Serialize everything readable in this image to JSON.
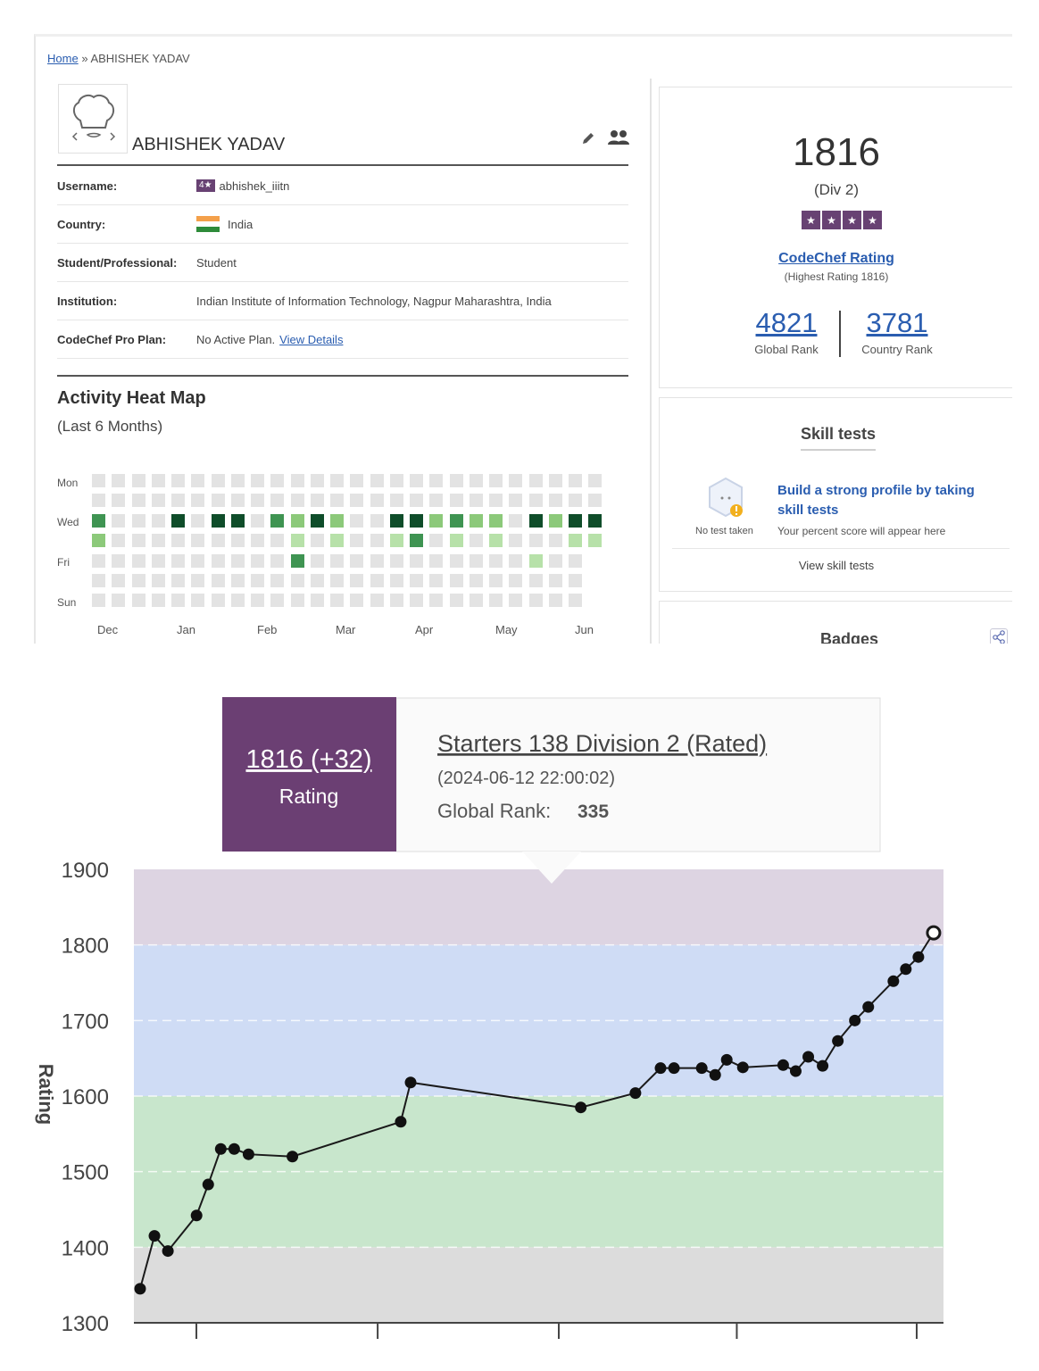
{
  "breadcrumb": {
    "home": "Home",
    "separator": "»",
    "current": "ABHISHEK YADAV"
  },
  "profile": {
    "name": "ABHISHEK YADAV",
    "details": [
      {
        "key": "Username:",
        "star": "4★",
        "value": "abhishek_iiitn"
      },
      {
        "key": "Country:",
        "flag": true,
        "value": "India"
      },
      {
        "key": "Student/Professional:",
        "value": "Student"
      },
      {
        "key": "Institution:",
        "value": "Indian Institute of Information Technology, Nagpur Maharashtra, India"
      },
      {
        "key": "CodeChef Pro Plan:",
        "value": "No Active Plan.",
        "link": "View Details"
      }
    ]
  },
  "heatmap": {
    "title": "Activity Heat Map",
    "subtitle": "(Last 6 Months)",
    "day_labels": [
      "Mon",
      "Wed",
      "Fri",
      "Sun"
    ],
    "months": [
      "Dec",
      "Jan",
      "Feb",
      "Mar",
      "Apr",
      "May",
      "Jun"
    ],
    "colors": {
      "empty": "#e3e3e3",
      "level1": "#b7e1a9",
      "level2": "#8cc97a",
      "level3": "#3f9452",
      "level4": "#0f4d2a"
    },
    "levels": [
      [
        0,
        0,
        0,
        0,
        0,
        0,
        0,
        0,
        0,
        0,
        0,
        0,
        0,
        0,
        0,
        0,
        0,
        0,
        0,
        0,
        0,
        0,
        0,
        0,
        0,
        0
      ],
      [
        0,
        0,
        0,
        0,
        0,
        0,
        0,
        0,
        0,
        0,
        0,
        0,
        0,
        0,
        0,
        0,
        0,
        0,
        0,
        0,
        0,
        0,
        0,
        0,
        0,
        0
      ],
      [
        3,
        0,
        0,
        0,
        4,
        0,
        4,
        4,
        0,
        3,
        2,
        4,
        2,
        0,
        0,
        4,
        4,
        2,
        3,
        2,
        2,
        0,
        4,
        2,
        4,
        4
      ],
      [
        2,
        0,
        0,
        0,
        0,
        0,
        0,
        0,
        0,
        0,
        1,
        0,
        1,
        0,
        0,
        1,
        3,
        0,
        1,
        0,
        1,
        0,
        0,
        0,
        1,
        1
      ],
      [
        0,
        0,
        0,
        0,
        0,
        0,
        0,
        0,
        0,
        0,
        3,
        0,
        0,
        0,
        0,
        0,
        0,
        0,
        0,
        0,
        0,
        0,
        1,
        0,
        0,
        -1
      ],
      [
        0,
        0,
        0,
        0,
        0,
        0,
        0,
        0,
        0,
        0,
        0,
        0,
        0,
        0,
        0,
        0,
        0,
        0,
        0,
        0,
        0,
        0,
        0,
        0,
        0,
        -1
      ],
      [
        0,
        0,
        0,
        0,
        0,
        0,
        0,
        0,
        0,
        0,
        0,
        0,
        0,
        0,
        0,
        0,
        0,
        0,
        0,
        0,
        0,
        0,
        0,
        0,
        0,
        -1
      ]
    ]
  },
  "rating_card": {
    "rating": "1816",
    "division": "(Div 2)",
    "stars": [
      "★",
      "★",
      "★",
      "★"
    ],
    "label": "CodeChef Rating",
    "highest": "(Highest Rating 1816)",
    "global_rank": "4821",
    "global_rank_label": "Global Rank",
    "country_rank": "3781",
    "country_rank_label": "Country Rank"
  },
  "skill_tests": {
    "title": "Skill tests",
    "no_test": "No test taken",
    "headline": "Build a strong profile by taking skill tests",
    "note": "Your percent score will appear here",
    "link": "View skill tests"
  },
  "badges": {
    "title": "Badges"
  },
  "tooltip": {
    "rating": "1816 (+32)",
    "rating_label": "Rating",
    "contest": "Starters 138 Division 2 (Rated)",
    "datetime": "(2024-06-12 22:00:02)",
    "rank_label": "Global Rank:",
    "rank_value": "335"
  },
  "chart_data": {
    "type": "line",
    "ylabel": "Rating",
    "ylim": [
      1300,
      1900
    ],
    "yticks": [
      1300,
      1400,
      1500,
      1600,
      1700,
      1800,
      1900
    ],
    "bands": [
      {
        "from": 1300,
        "to": 1400,
        "color": "#dcdcdc"
      },
      {
        "from": 1400,
        "to": 1600,
        "color": "#c8e6cc"
      },
      {
        "from": 1600,
        "to": 1800,
        "color": "#cfdcf5"
      },
      {
        "from": 1800,
        "to": 1900,
        "color": "#ddd4e2"
      }
    ],
    "series": [
      {
        "values": [
          1345,
          1415,
          1395,
          1442,
          1483,
          1530,
          1530,
          1523,
          1520,
          1566,
          1618,
          1585,
          1604,
          1637,
          1637,
          1637,
          1628,
          1648,
          1638,
          1641,
          1633,
          1652,
          1640,
          1673,
          1700,
          1718,
          1752,
          1768,
          1784,
          1816
        ],
        "x": [
          0.0077,
          0.0254,
          0.042,
          0.0774,
          0.0918,
          0.1073,
          0.1239,
          0.1416,
          0.1958,
          0.3296,
          0.3418,
          0.552,
          0.6195,
          0.6505,
          0.6671,
          0.7014,
          0.718,
          0.7323,
          0.7522,
          0.802,
          0.8175,
          0.833,
          0.8507,
          0.8695,
          0.8905,
          0.9071,
          0.9381,
          0.9535,
          0.969,
          0.9878
        ]
      }
    ]
  }
}
